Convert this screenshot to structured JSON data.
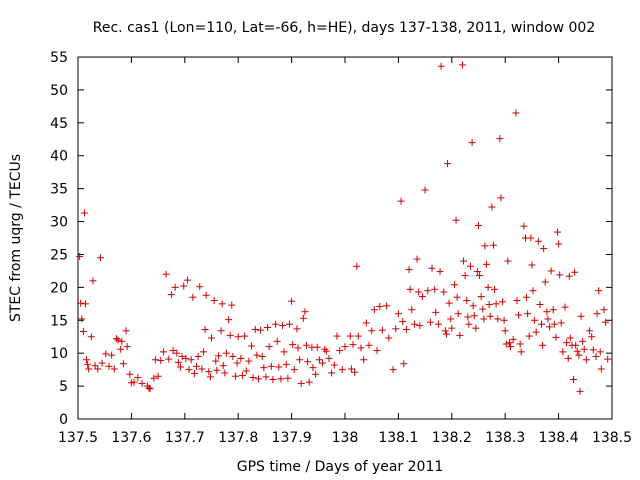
{
  "chart_data": {
    "type": "scatter",
    "title": "Rec. cas1 (Lon=110, Lat=-66, h=HE), days 137-138, 2011, window 002",
    "xlabel": "GPS time / Days of year 2011",
    "ylabel": "STEC from uqrg / TECUs",
    "xlim": [
      137.5,
      138.5
    ],
    "ylim": [
      0,
      55
    ],
    "xticks": [
      "137.5",
      "137.6",
      "137.7",
      "137.8",
      "137.9",
      "138",
      "138.1",
      "138.2",
      "138.3",
      "138.4",
      "138.5"
    ],
    "yticks": [
      "0",
      "5",
      "10",
      "15",
      "20",
      "25",
      "30",
      "35",
      "40",
      "45",
      "50",
      "55"
    ],
    "grid": false,
    "marker": "+",
    "color": "#d00000",
    "points": [
      [
        137.503,
        24.7
      ],
      [
        137.505,
        17.6
      ],
      [
        137.507,
        15.2
      ],
      [
        137.51,
        13.3
      ],
      [
        137.512,
        31.3
      ],
      [
        137.514,
        17.5
      ],
      [
        137.516,
        9.0
      ],
      [
        137.518,
        8.3
      ],
      [
        137.52,
        7.6
      ],
      [
        137.525,
        12.5
      ],
      [
        137.528,
        21.0
      ],
      [
        137.532,
        8.1
      ],
      [
        137.537,
        7.6
      ],
      [
        137.542,
        24.5
      ],
      [
        137.545,
        8.5
      ],
      [
        137.552,
        9.9
      ],
      [
        137.558,
        8.0
      ],
      [
        137.563,
        9.7
      ],
      [
        137.568,
        7.6
      ],
      [
        137.572,
        12.2
      ],
      [
        137.575,
        12.0
      ],
      [
        137.58,
        10.6
      ],
      [
        137.582,
        11.8
      ],
      [
        137.585,
        8.4
      ],
      [
        137.59,
        13.4
      ],
      [
        137.592,
        11.0
      ],
      [
        137.597,
        6.8
      ],
      [
        137.6,
        5.5
      ],
      [
        137.605,
        5.6
      ],
      [
        137.612,
        6.3
      ],
      [
        137.62,
        5.4
      ],
      [
        137.63,
        5.0
      ],
      [
        137.633,
        4.7
      ],
      [
        137.635,
        4.6
      ],
      [
        137.642,
        6.2
      ],
      [
        137.645,
        9.0
      ],
      [
        137.65,
        6.5
      ],
      [
        137.655,
        8.9
      ],
      [
        137.66,
        10.2
      ],
      [
        137.665,
        22.0
      ],
      [
        137.67,
        9.1
      ],
      [
        137.675,
        18.9
      ],
      [
        137.678,
        10.4
      ],
      [
        137.682,
        20.0
      ],
      [
        137.685,
        10.0
      ],
      [
        137.688,
        8.6
      ],
      [
        137.692,
        7.9
      ],
      [
        137.695,
        9.5
      ],
      [
        137.698,
        20.2
      ],
      [
        137.702,
        9.2
      ],
      [
        137.705,
        21.1
      ],
      [
        137.708,
        7.5
      ],
      [
        137.712,
        9.0
      ],
      [
        137.715,
        18.5
      ],
      [
        137.718,
        6.9
      ],
      [
        137.722,
        8.0
      ],
      [
        137.725,
        9.5
      ],
      [
        137.728,
        20.1
      ],
      [
        137.732,
        7.6
      ],
      [
        137.735,
        10.2
      ],
      [
        137.738,
        13.6
      ],
      [
        137.74,
        18.8
      ],
      [
        137.745,
        7.2
      ],
      [
        137.748,
        6.4
      ],
      [
        137.75,
        12.3
      ],
      [
        137.755,
        18.0
      ],
      [
        137.758,
        8.8
      ],
      [
        137.76,
        7.4
      ],
      [
        137.763,
        9.6
      ],
      [
        137.768,
        13.4
      ],
      [
        137.77,
        17.5
      ],
      [
        137.772,
        8.1
      ],
      [
        137.775,
        7.0
      ],
      [
        137.778,
        10.0
      ],
      [
        137.782,
        15.1
      ],
      [
        137.785,
        12.7
      ],
      [
        137.788,
        17.3
      ],
      [
        137.79,
        9.5
      ],
      [
        137.795,
        6.5
      ],
      [
        137.798,
        8.5
      ],
      [
        137.8,
        12.5
      ],
      [
        137.805,
        9.2
      ],
      [
        137.808,
        6.6
      ],
      [
        137.812,
        12.6
      ],
      [
        137.815,
        7.3
      ],
      [
        137.82,
        8.8
      ],
      [
        137.825,
        11.1
      ],
      [
        137.828,
        6.3
      ],
      [
        137.832,
        13.6
      ],
      [
        137.835,
        9.7
      ],
      [
        137.838,
        6.1
      ],
      [
        137.842,
        13.5
      ],
      [
        137.845,
        9.5
      ],
      [
        137.848,
        7.8
      ],
      [
        137.852,
        6.4
      ],
      [
        137.855,
        13.9
      ],
      [
        137.858,
        11.0
      ],
      [
        137.862,
        8.0
      ],
      [
        137.865,
        6.0
      ],
      [
        137.87,
        14.4
      ],
      [
        137.873,
        11.8
      ],
      [
        137.876,
        7.9
      ],
      [
        137.88,
        6.1
      ],
      [
        137.883,
        14.2
      ],
      [
        137.886,
        10.2
      ],
      [
        137.89,
        8.3
      ],
      [
        137.893,
        6.2
      ],
      [
        137.896,
        14.4
      ],
      [
        137.9,
        17.9
      ],
      [
        137.902,
        11.3
      ],
      [
        137.905,
        7.5
      ],
      [
        137.91,
        13.7
      ],
      [
        137.912,
        10.8
      ],
      [
        137.915,
        9.0
      ],
      [
        137.918,
        5.4
      ],
      [
        137.922,
        15.3
      ],
      [
        137.925,
        16.3
      ],
      [
        137.928,
        11.2
      ],
      [
        137.93,
        8.7
      ],
      [
        137.933,
        5.6
      ],
      [
        137.938,
        10.9
      ],
      [
        137.94,
        7.8
      ],
      [
        137.945,
        6.8
      ],
      [
        137.948,
        10.9
      ],
      [
        137.952,
        9.0
      ],
      [
        137.958,
        8.5
      ],
      [
        137.962,
        10.6
      ],
      [
        137.965,
        10.3
      ],
      [
        137.97,
        9.2
      ],
      [
        137.975,
        7.0
      ],
      [
        137.98,
        8.2
      ],
      [
        137.985,
        12.6
      ],
      [
        137.99,
        10.4
      ],
      [
        137.995,
        7.5
      ],
      [
        138.0,
        11.0
      ],
      [
        138.01,
        12.6
      ],
      [
        138.012,
        7.6
      ],
      [
        138.015,
        11.3
      ],
      [
        138.018,
        7.1
      ],
      [
        138.022,
        23.2
      ],
      [
        138.025,
        12.6
      ],
      [
        138.03,
        10.8
      ],
      [
        138.035,
        9.0
      ],
      [
        138.04,
        14.6
      ],
      [
        138.045,
        11.2
      ],
      [
        138.05,
        13.4
      ],
      [
        138.055,
        16.6
      ],
      [
        138.06,
        10.4
      ],
      [
        138.065,
        17.1
      ],
      [
        138.07,
        13.5
      ],
      [
        138.078,
        17.2
      ],
      [
        138.082,
        12.3
      ],
      [
        138.09,
        7.5
      ],
      [
        138.095,
        13.7
      ],
      [
        138.1,
        16.0
      ],
      [
        138.105,
        33.1
      ],
      [
        138.108,
        14.8
      ],
      [
        138.11,
        8.4
      ],
      [
        138.115,
        13.6
      ],
      [
        138.12,
        22.7
      ],
      [
        138.122,
        19.7
      ],
      [
        138.125,
        16.6
      ],
      [
        138.13,
        14.4
      ],
      [
        138.135,
        24.3
      ],
      [
        138.138,
        19.3
      ],
      [
        138.14,
        14.2
      ],
      [
        138.145,
        18.6
      ],
      [
        138.15,
        34.8
      ],
      [
        138.155,
        19.5
      ],
      [
        138.16,
        14.7
      ],
      [
        138.163,
        22.9
      ],
      [
        138.168,
        19.7
      ],
      [
        138.17,
        16.2
      ],
      [
        138.175,
        14.4
      ],
      [
        138.178,
        22.4
      ],
      [
        138.18,
        53.6
      ],
      [
        138.185,
        19.3
      ],
      [
        138.188,
        13.4
      ],
      [
        138.19,
        12.9
      ],
      [
        138.192,
        38.8
      ],
      [
        138.195,
        17.6
      ],
      [
        138.198,
        15.2
      ],
      [
        138.2,
        13.8
      ],
      [
        138.205,
        20.4
      ],
      [
        138.208,
        30.2
      ],
      [
        138.21,
        18.5
      ],
      [
        138.212,
        16.0
      ],
      [
        138.215,
        12.7
      ],
      [
        138.22,
        53.8
      ],
      [
        138.222,
        24.0
      ],
      [
        138.225,
        21.8
      ],
      [
        138.228,
        18.0
      ],
      [
        138.23,
        15.5
      ],
      [
        138.232,
        14.4
      ],
      [
        138.235,
        23.2
      ],
      [
        138.238,
        42.0
      ],
      [
        138.24,
        17.2
      ],
      [
        138.242,
        15.7
      ],
      [
        138.245,
        13.8
      ],
      [
        138.248,
        22.4
      ],
      [
        138.25,
        29.4
      ],
      [
        138.252,
        21.8
      ],
      [
        138.255,
        18.6
      ],
      [
        138.258,
        16.7
      ],
      [
        138.26,
        15.2
      ],
      [
        138.262,
        26.3
      ],
      [
        138.265,
        23.5
      ],
      [
        138.268,
        20.0
      ],
      [
        138.27,
        17.4
      ],
      [
        138.272,
        15.6
      ],
      [
        138.275,
        32.2
      ],
      [
        138.278,
        26.4
      ],
      [
        138.28,
        19.7
      ],
      [
        138.283,
        17.5
      ],
      [
        138.286,
        15.2
      ],
      [
        138.29,
        42.6
      ],
      [
        138.292,
        33.6
      ],
      [
        138.295,
        17.8
      ],
      [
        138.298,
        15.0
      ],
      [
        138.3,
        13.4
      ],
      [
        138.302,
        11.4
      ],
      [
        138.305,
        24.0
      ],
      [
        138.308,
        11.6
      ],
      [
        138.31,
        11.0
      ],
      [
        138.315,
        12.1
      ],
      [
        138.32,
        46.5
      ],
      [
        138.322,
        18.0
      ],
      [
        138.325,
        15.8
      ],
      [
        138.328,
        11.4
      ],
      [
        138.33,
        10.2
      ],
      [
        138.335,
        29.3
      ],
      [
        138.338,
        27.5
      ],
      [
        138.34,
        18.5
      ],
      [
        138.342,
        16.0
      ],
      [
        138.345,
        12.6
      ],
      [
        138.348,
        27.5
      ],
      [
        138.35,
        23.4
      ],
      [
        138.352,
        19.5
      ],
      [
        138.355,
        15.0
      ],
      [
        138.358,
        13.2
      ],
      [
        138.362,
        27.0
      ],
      [
        138.365,
        17.4
      ],
      [
        138.368,
        14.4
      ],
      [
        138.37,
        11.2
      ],
      [
        138.372,
        25.9
      ],
      [
        138.375,
        20.8
      ],
      [
        138.378,
        16.3
      ],
      [
        138.38,
        15.2
      ],
      [
        138.383,
        14.0
      ],
      [
        138.386,
        22.5
      ],
      [
        138.39,
        16.6
      ],
      [
        138.392,
        14.4
      ],
      [
        138.395,
        12.4
      ],
      [
        138.398,
        28.4
      ],
      [
        138.4,
        26.6
      ],
      [
        138.402,
        21.9
      ],
      [
        138.405,
        14.6
      ],
      [
        138.408,
        10.2
      ],
      [
        138.412,
        17.0
      ],
      [
        138.415,
        11.6
      ],
      [
        138.418,
        9.2
      ],
      [
        138.42,
        21.7
      ],
      [
        138.422,
        12.3
      ],
      [
        138.425,
        11.2
      ],
      [
        138.428,
        6.0
      ],
      [
        138.43,
        22.3
      ],
      [
        138.432,
        11.2
      ],
      [
        138.435,
        10.3
      ],
      [
        138.438,
        9.7
      ],
      [
        138.44,
        4.2
      ],
      [
        138.442,
        15.6
      ],
      [
        138.445,
        11.8
      ],
      [
        138.448,
        10.6
      ],
      [
        138.452,
        9.0
      ],
      [
        138.458,
        13.4
      ],
      [
        138.462,
        12.5
      ],
      [
        138.465,
        10.5
      ],
      [
        138.47,
        9.5
      ],
      [
        138.472,
        16.0
      ],
      [
        138.475,
        19.5
      ],
      [
        138.478,
        10.2
      ],
      [
        138.48,
        7.6
      ],
      [
        138.485,
        16.6
      ],
      [
        138.488,
        14.7
      ],
      [
        138.492,
        9.1
      ]
    ]
  }
}
